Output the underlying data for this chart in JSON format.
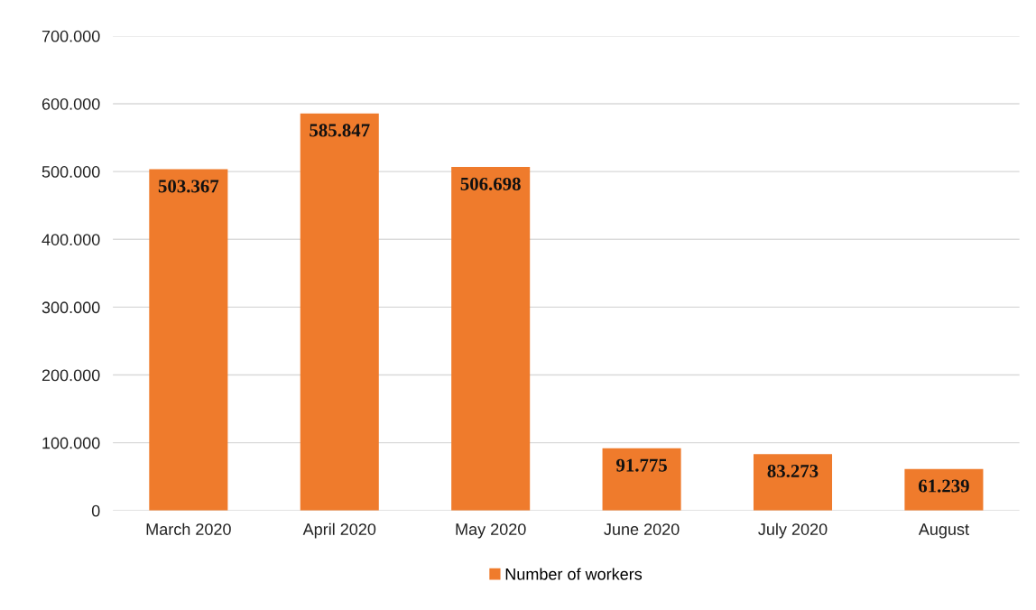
{
  "chart_data": {
    "type": "bar",
    "categories": [
      "March 2020",
      "April 2020",
      "May 2020",
      "June 2020",
      "July 2020",
      "August"
    ],
    "series": [
      {
        "name": "Number of workers",
        "color": "#ef7b2c",
        "values": [
          503367,
          585847,
          506698,
          91775,
          83273,
          61239
        ],
        "value_labels": [
          "503.367",
          "585.847",
          "506.698",
          "91.775",
          "83.273",
          "61.239"
        ]
      }
    ],
    "ylim": [
      0,
      700000
    ],
    "yticks": [
      0,
      {
        "value": 100000,
        "label": "100.000"
      },
      {
        "value": 200000,
        "label": "200.000"
      },
      {
        "value": 300000,
        "label": "300.000"
      },
      {
        "value": 400000,
        "label": "400.000"
      },
      {
        "value": 500000,
        "label": "500.000"
      },
      {
        "value": 600000,
        "label": "600.000"
      },
      {
        "value": 700000,
        "label": "700.000"
      }
    ],
    "grid": "y",
    "legend": "bottom"
  }
}
